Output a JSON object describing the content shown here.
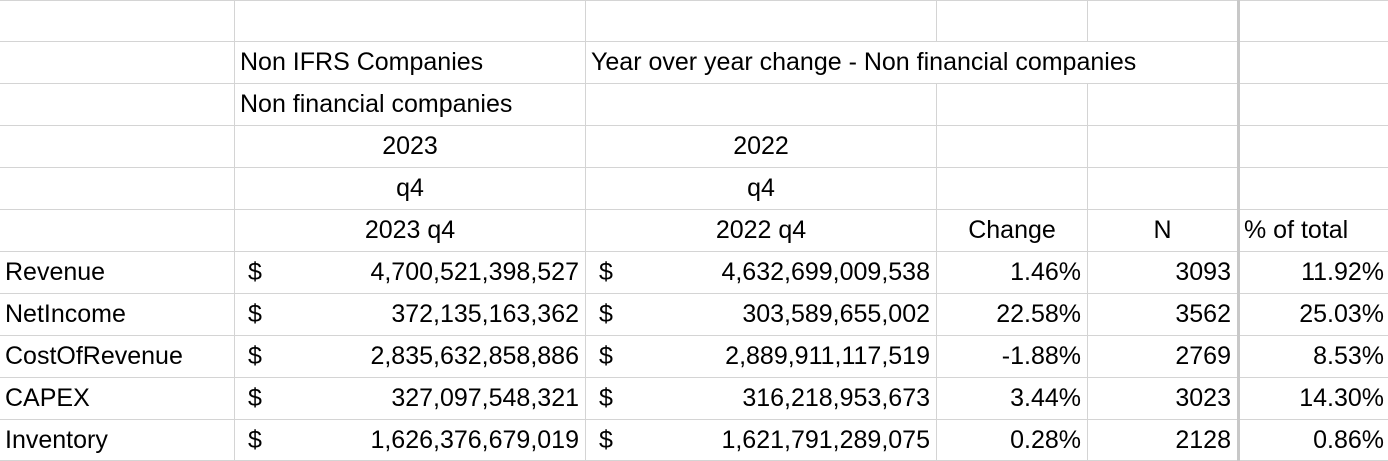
{
  "headers": {
    "group_a": "Non IFRS Companies",
    "group_b": "Year over year change - Non financial companies",
    "subgroup": "Non financial companies",
    "year_a": "2023",
    "year_b": "2022",
    "quarter_a": "q4",
    "quarter_b": "q4",
    "period_a": "2023 q4",
    "period_b": "2022 q4",
    "change": "Change",
    "n": "N",
    "pct_total": "% of total"
  },
  "rows": [
    {
      "metric": "Revenue",
      "cur_sym": "$",
      "val_2023": "4,700,521,398,527",
      "cur_sym_b": "$",
      "val_2022": "4,632,699,009,538",
      "change": "1.46%",
      "n": "3093",
      "pct": "11.92%"
    },
    {
      "metric": "NetIncome",
      "cur_sym": "$",
      "val_2023": "372,135,163,362",
      "cur_sym_b": "$",
      "val_2022": "303,589,655,002",
      "change": "22.58%",
      "n": "3562",
      "pct": "25.03%"
    },
    {
      "metric": "CostOfRevenue",
      "cur_sym": "$",
      "val_2023": "2,835,632,858,886",
      "cur_sym_b": "$",
      "val_2022": "2,889,911,117,519",
      "change": "-1.88%",
      "n": "2769",
      "pct": "8.53%"
    },
    {
      "metric": "CAPEX",
      "cur_sym": "$",
      "val_2023": "327,097,548,321",
      "cur_sym_b": "$",
      "val_2022": "316,218,953,673",
      "change": "3.44%",
      "n": "3023",
      "pct": "14.30%"
    },
    {
      "metric": "Inventory",
      "cur_sym": "$",
      "val_2023": "1,626,376,679,019",
      "cur_sym_b": "$",
      "val_2022": "1,621,791,289,075",
      "change": "0.28%",
      "n": "2128",
      "pct": "0.86%"
    }
  ]
}
